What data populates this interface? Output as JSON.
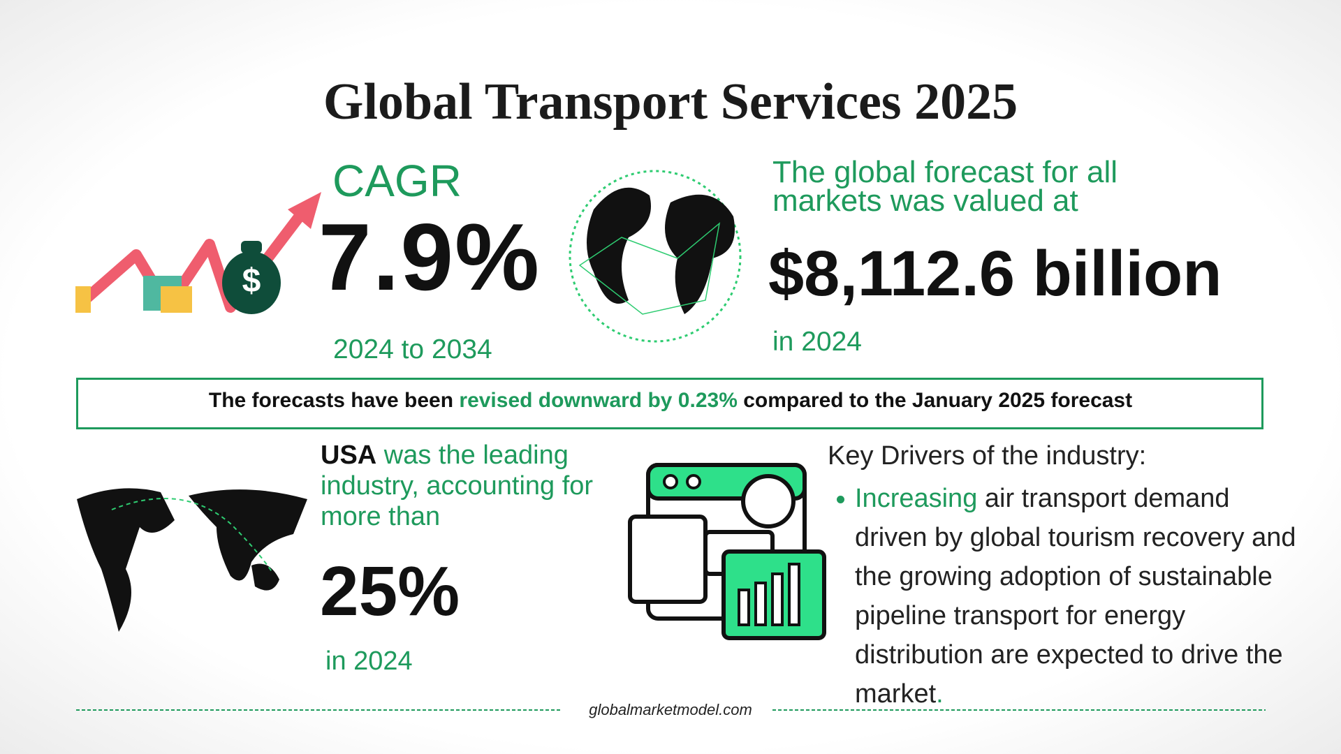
{
  "header": {
    "title": "Global Transport Services 2025"
  },
  "cagr": {
    "label": "CAGR",
    "value": "7.9%",
    "period": "2024 to 2034"
  },
  "forecast": {
    "intro": "The global forecast for all markets was valued at",
    "value": "$8,112.6 billion",
    "year": "in 2024"
  },
  "revision": {
    "before": "The forecasts have been",
    "highlight": "revised downward by 0.23%",
    "after": "compared to the January 2025 forecast"
  },
  "leader": {
    "name": "USA",
    "text": "was the leading industry, accounting for more than",
    "value": "25%",
    "year": "in 2024"
  },
  "drivers": {
    "heading": "Key Drivers of the industry:",
    "items": [
      {
        "highlight": "Increasing",
        "text": "air transport demand driven by global tourism recovery and the growing adoption of sustainable pipeline transport for energy distribution are expected to drive the market",
        "end": "."
      }
    ]
  },
  "footer": {
    "source": "globalmarketmodel.com"
  }
}
